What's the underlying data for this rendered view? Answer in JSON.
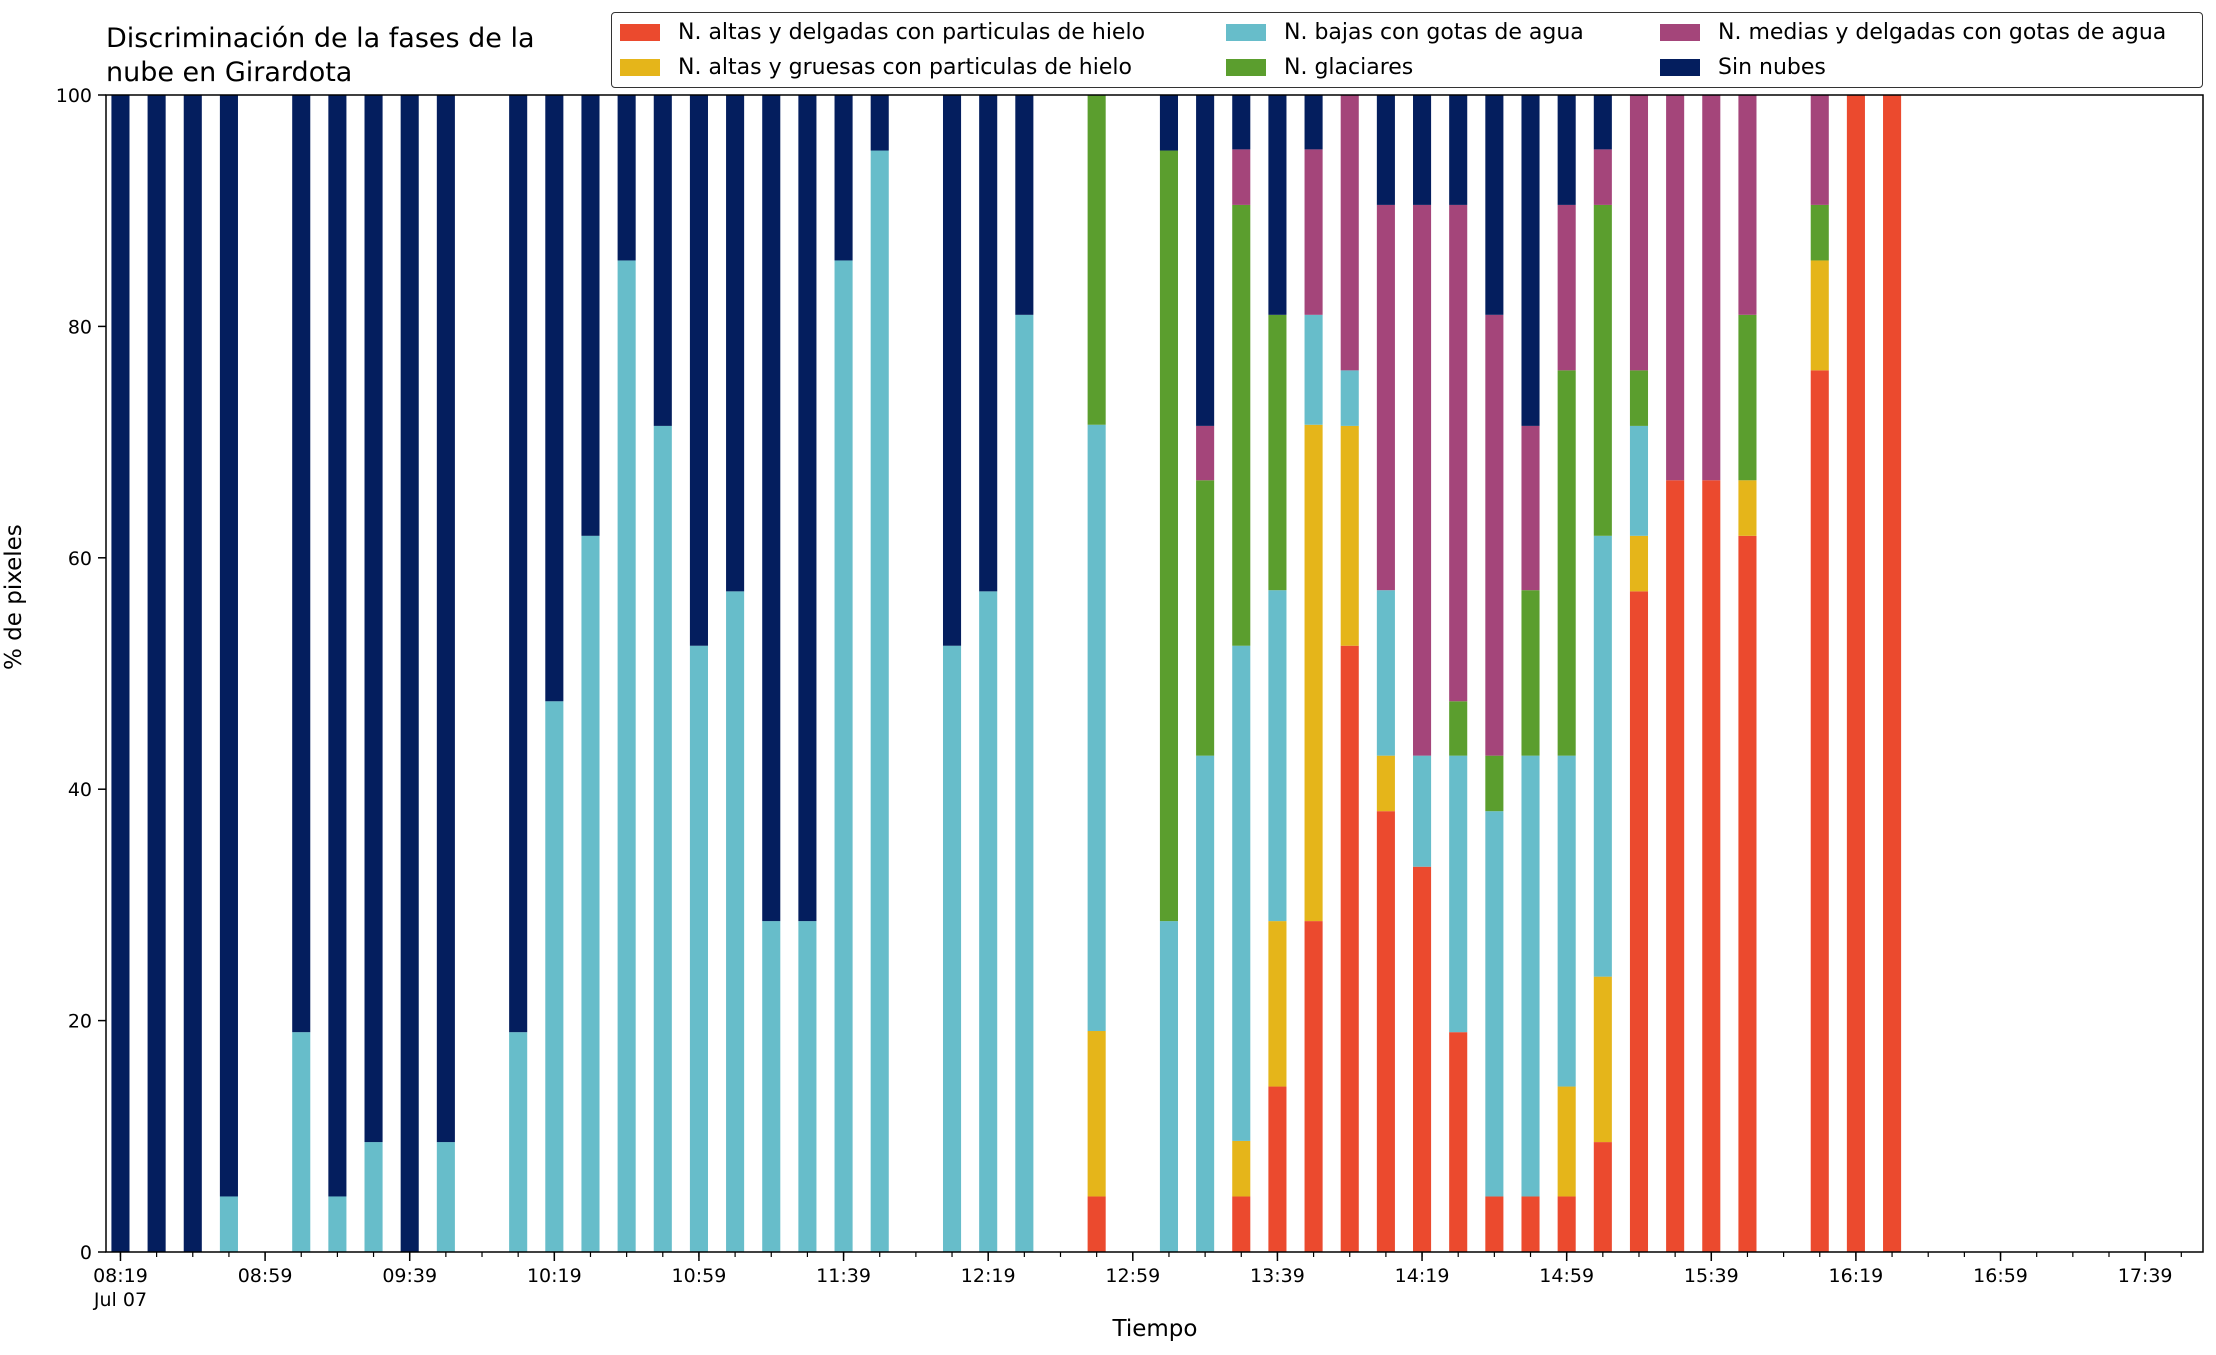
{
  "chart_data": {
    "type": "bar",
    "stacked": true,
    "title": "Discriminación de la fases de la\nnube en Girardota",
    "xlabel": "Tiempo",
    "ylabel": "% de pixeles",
    "ylim": [
      0,
      100
    ],
    "yticks": [
      0,
      20,
      40,
      60,
      80,
      100
    ],
    "xlim": [
      "08:15",
      "17:55"
    ],
    "xticks": [
      "08:19",
      "08:59",
      "09:39",
      "10:19",
      "10:59",
      "11:39",
      "12:19",
      "12:59",
      "13:39",
      "14:19",
      "14:59",
      "15:39",
      "16:19",
      "16:59",
      "17:39"
    ],
    "xtick_date": "Jul 07",
    "minor_tick_minutes": 10,
    "legend_position": "top",
    "series": [
      {
        "name": "N. altas y delgadas con particulas de hielo",
        "color": "#EB4A2E"
      },
      {
        "name": "N. altas y gruesas con particulas de hielo",
        "color": "#E5B51A"
      },
      {
        "name": "N. bajas con gotas de agua",
        "color": "#67BDCA"
      },
      {
        "name": "N. glaciares",
        "color": "#5B9E2E"
      },
      {
        "name": "N. medias y delgadas con gotas de agua",
        "color": "#A4457A"
      },
      {
        "name": "Sin nubes",
        "color": "#041E5E"
      }
    ],
    "bars": [
      {
        "time": "08:19",
        "values": [
          0,
          0,
          0,
          0,
          0,
          100
        ]
      },
      {
        "time": "08:29",
        "values": [
          0,
          0,
          0,
          0,
          0,
          100
        ]
      },
      {
        "time": "08:39",
        "values": [
          0,
          0,
          0,
          0,
          0,
          100
        ]
      },
      {
        "time": "08:49",
        "values": [
          0,
          0,
          4.8,
          0,
          0,
          95.2
        ]
      },
      {
        "time": "09:09",
        "values": [
          0,
          0,
          19,
          0,
          0,
          81
        ]
      },
      {
        "time": "09:19",
        "values": [
          0,
          0,
          4.8,
          0,
          0,
          95.2
        ]
      },
      {
        "time": "09:29",
        "values": [
          0,
          0,
          9.5,
          0,
          0,
          90.5
        ]
      },
      {
        "time": "09:39",
        "values": [
          0,
          0,
          0,
          0,
          0,
          100
        ]
      },
      {
        "time": "09:49",
        "values": [
          0,
          0,
          9.5,
          0,
          0,
          90.5
        ]
      },
      {
        "time": "10:09",
        "values": [
          0,
          0,
          19,
          0,
          0,
          81
        ]
      },
      {
        "time": "10:19",
        "values": [
          0,
          0,
          47.6,
          0,
          0,
          52.4
        ]
      },
      {
        "time": "10:29",
        "values": [
          0,
          0,
          61.9,
          0,
          0,
          38.1
        ]
      },
      {
        "time": "10:39",
        "values": [
          0,
          0,
          85.7,
          0,
          0,
          14.3
        ]
      },
      {
        "time": "10:49",
        "values": [
          0,
          0,
          71.4,
          0,
          0,
          28.6
        ]
      },
      {
        "time": "10:59",
        "values": [
          0,
          0,
          52.4,
          0,
          0,
          47.6
        ]
      },
      {
        "time": "11:09",
        "values": [
          0,
          0,
          57.1,
          0,
          0,
          42.9
        ]
      },
      {
        "time": "11:19",
        "values": [
          0,
          0,
          28.6,
          0,
          0,
          71.4
        ]
      },
      {
        "time": "11:29",
        "values": [
          0,
          0,
          28.6,
          0,
          0,
          71.4
        ]
      },
      {
        "time": "11:39",
        "values": [
          0,
          0,
          85.7,
          0,
          0,
          14.3
        ]
      },
      {
        "time": "11:49",
        "values": [
          0,
          0,
          95.2,
          0,
          0,
          4.8
        ]
      },
      {
        "time": "12:09",
        "values": [
          0,
          0,
          52.4,
          0,
          0,
          47.6
        ]
      },
      {
        "time": "12:19",
        "values": [
          0,
          0,
          57.1,
          0,
          0,
          42.9
        ]
      },
      {
        "time": "12:29",
        "values": [
          0,
          0,
          81,
          0,
          0,
          19
        ]
      },
      {
        "time": "12:49",
        "values": [
          4.8,
          14.3,
          52.4,
          28.5,
          0,
          0
        ]
      },
      {
        "time": "13:09",
        "values": [
          0,
          0,
          28.6,
          66.6,
          0,
          4.8
        ]
      },
      {
        "time": "13:19",
        "values": [
          0,
          0,
          42.9,
          23.8,
          4.7,
          28.6
        ]
      },
      {
        "time": "13:29",
        "values": [
          4.8,
          4.8,
          42.8,
          38.1,
          4.8,
          4.7
        ]
      },
      {
        "time": "13:39",
        "values": [
          14.3,
          14.3,
          28.6,
          23.8,
          0,
          19
        ]
      },
      {
        "time": "13:49",
        "values": [
          28.6,
          42.9,
          9.5,
          0,
          14.3,
          4.7
        ]
      },
      {
        "time": "13:59",
        "values": [
          52.4,
          19,
          4.8,
          0,
          23.8,
          0
        ]
      },
      {
        "time": "14:09",
        "values": [
          38.1,
          4.8,
          14.3,
          0,
          33.3,
          9.5
        ]
      },
      {
        "time": "14:19",
        "values": [
          33.3,
          0,
          9.6,
          0,
          47.6,
          9.5
        ]
      },
      {
        "time": "14:29",
        "values": [
          19,
          0,
          23.9,
          4.7,
          42.9,
          9.5
        ]
      },
      {
        "time": "14:39",
        "values": [
          4.8,
          0,
          33.3,
          4.8,
          38.1,
          19
        ]
      },
      {
        "time": "14:49",
        "values": [
          4.8,
          0,
          38.1,
          14.3,
          14.2,
          28.6
        ]
      },
      {
        "time": "14:59",
        "values": [
          4.8,
          9.5,
          28.6,
          33.3,
          14.3,
          9.5
        ]
      },
      {
        "time": "15:09",
        "values": [
          9.5,
          14.3,
          38.1,
          28.6,
          4.8,
          4.7
        ]
      },
      {
        "time": "15:19",
        "values": [
          57.1,
          4.8,
          9.5,
          4.8,
          23.8,
          0
        ]
      },
      {
        "time": "15:29",
        "values": [
          66.7,
          0,
          0,
          0,
          33.3,
          0
        ]
      },
      {
        "time": "15:39",
        "values": [
          66.7,
          0,
          0,
          0,
          33.3,
          0
        ]
      },
      {
        "time": "15:49",
        "values": [
          61.9,
          4.8,
          0,
          14.3,
          19,
          0
        ]
      },
      {
        "time": "16:09",
        "values": [
          76.2,
          9.5,
          0,
          4.8,
          9.5,
          0
        ]
      },
      {
        "time": "16:19",
        "values": [
          100,
          0,
          0,
          0,
          0,
          0
        ]
      },
      {
        "time": "16:29",
        "values": [
          100,
          0,
          0,
          0,
          0,
          0
        ]
      }
    ]
  }
}
